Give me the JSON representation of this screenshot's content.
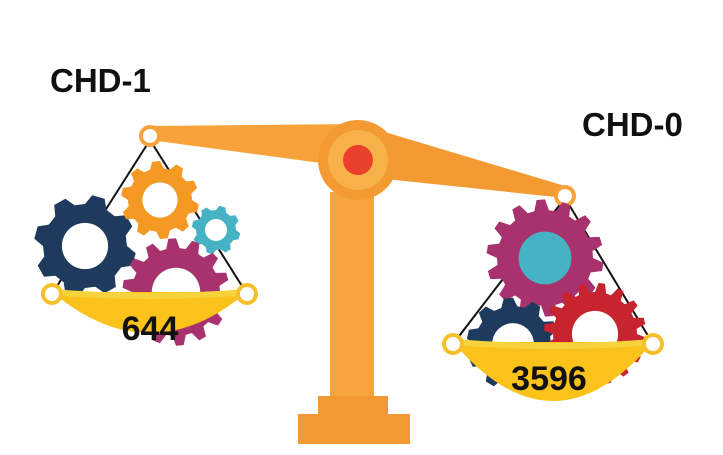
{
  "left_pan": {
    "label": "CHD-1",
    "count": "644"
  },
  "right_pan": {
    "label": "CHD-0",
    "count": "3596"
  },
  "icons": [
    "balance-scale-icon",
    "gear-icon"
  ],
  "colors": {
    "scale_orange": "#F7A23B",
    "scale_orange_dark": "#E8882A",
    "pivot_red": "#E8402B",
    "pan_yellow": "#FBC21B",
    "pan_rim": "#F6D23C",
    "gear_navy": "#1E3A5C",
    "gear_orange": "#F49A24",
    "gear_teal": "#46B3C4",
    "gear_magenta": "#A8326E",
    "gear_red": "#C8242F"
  }
}
